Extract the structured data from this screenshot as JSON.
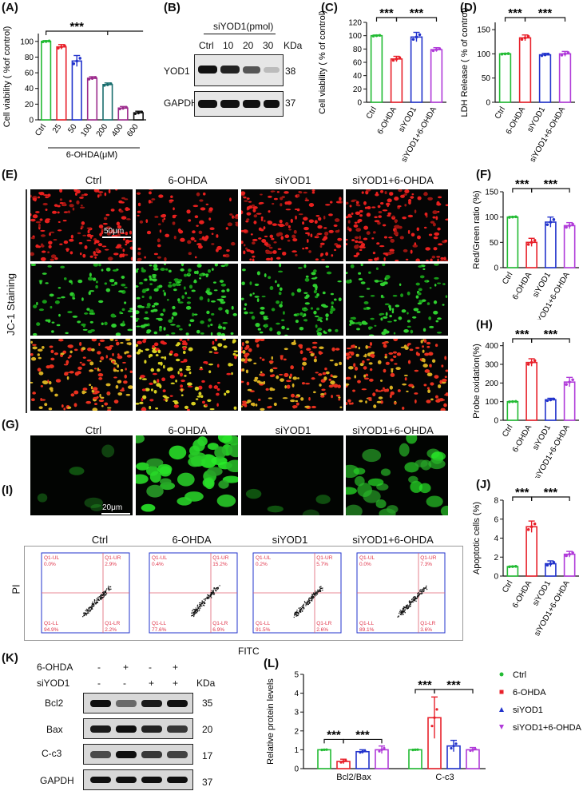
{
  "colors": {
    "green": "#22bb33",
    "red": "#e8202a",
    "blue": "#2233cc",
    "purple": "#b03ad9",
    "magenta": "#9c2a8c",
    "teal": "#1a6e6e",
    "black": "#111111"
  },
  "panels": {
    "A": "(A)",
    "B": "(B)",
    "C": "(C)",
    "D": "(D)",
    "E": "(E)",
    "F": "(F)",
    "G": "(G)",
    "H": "(H)",
    "I": "(I)",
    "J": "(J)",
    "K": "(K)",
    "L": "(L)"
  },
  "sig": "***",
  "groups": [
    "Ctrl",
    "6-OHDA",
    "siYOD1",
    "siYOD1+6-OHDA"
  ],
  "panelA": {
    "type": "bar",
    "ylabel": "Cell viability ( %of control)",
    "xlabel": "6-OHDA(μM)",
    "categories": [
      "Ctrl",
      "25",
      "50",
      "100",
      "200",
      "400",
      "600"
    ],
    "values": [
      100,
      93,
      75,
      53,
      45,
      15,
      9
    ],
    "errors": [
      1,
      3,
      7,
      2,
      2,
      2,
      2
    ],
    "ylim": [
      0,
      110
    ],
    "yticks": [
      "0",
      "20",
      "40",
      "60",
      "80",
      "100"
    ]
  },
  "panelB": {
    "title": "siYOD1(pmol)",
    "kda": "KDa",
    "lanes": [
      "Ctrl",
      "10",
      "20",
      "30"
    ],
    "rows": [
      {
        "name": "YOD1",
        "mw": "38"
      },
      {
        "name": "GAPDH",
        "mw": "37"
      }
    ]
  },
  "panelC": {
    "type": "bar",
    "ylabel": "Cell viability ( % of control)",
    "categories": [
      "Ctrl",
      "6-OHDA",
      "siYOD1",
      "siYOD1+6-OHDA"
    ],
    "values": [
      100,
      65,
      98,
      79
    ],
    "errors": [
      1,
      4,
      7,
      3
    ],
    "ylim": [
      0,
      120
    ],
    "yticks": [
      "0",
      "20",
      "40",
      "60",
      "80",
      "100",
      "120"
    ]
  },
  "panelD": {
    "type": "bar",
    "ylabel": "LDH Release ( % of control)",
    "categories": [
      "Ctrl",
      "6-OHDA",
      "siYOD1",
      "siYOD1+6-OHDA"
    ],
    "values": [
      100,
      133,
      98,
      100
    ],
    "errors": [
      1,
      6,
      3,
      5
    ],
    "ylim": [
      0,
      165
    ],
    "yticks": [
      "0",
      "50",
      "100",
      "150"
    ]
  },
  "panelE": {
    "cols": [
      "Ctrl",
      "6-OHDA",
      "siYOD1",
      "siYOD1+6-OHDA"
    ],
    "ylabel": "JC-1 Staining",
    "scale": "50μm"
  },
  "panelF": {
    "type": "bar",
    "ylabel": "Red/Green ratio (%)",
    "categories": [
      "Ctrl",
      "6-OHDA",
      "siYOD1",
      "siYOD1+6-OHDA"
    ],
    "values": [
      100,
      50,
      90,
      83
    ],
    "errors": [
      1,
      8,
      10,
      6
    ],
    "ylim": [
      0,
      150
    ],
    "yticks": [
      "0",
      "50",
      "100",
      "150"
    ]
  },
  "panelG": {
    "cols": [
      "Ctrl",
      "6-OHDA",
      "siYOD1",
      "siYOD1+6-OHDA"
    ],
    "scale": "20μm"
  },
  "panelH": {
    "type": "bar",
    "ylabel": "Probe oxidation(%)",
    "categories": [
      "Ctrl",
      "6-OHDA",
      "siYOD1",
      "siYOD1+6-OHDA"
    ],
    "values": [
      100,
      310,
      110,
      205
    ],
    "errors": [
      2,
      20,
      8,
      25
    ],
    "ylim": [
      0,
      420
    ],
    "yticks": [
      "0",
      "100",
      "200",
      "300",
      "400"
    ]
  },
  "panelI": {
    "cols": [
      "Ctrl",
      "6-OHDA",
      "siYOD1",
      "siYOD1+6-OHDA"
    ],
    "xlabel": "FITC",
    "ylabel": "PI",
    "plots": [
      {
        "ul": "Q1-UL",
        "ur": "Q1-UR",
        "ll": "Q1-LL",
        "lr": "Q1-LR",
        "ulv": "0.0%",
        "urv": "2.9%",
        "llv": "94.9%",
        "lrv": "2.2%"
      },
      {
        "ul": "Q1-UL",
        "ur": "Q1-UR",
        "ll": "Q1-LL",
        "lr": "Q1-LR",
        "ulv": "0.4%",
        "urv": "15.2%",
        "llv": "77.6%",
        "lrv": "6.9%"
      },
      {
        "ul": "Q1-UL",
        "ur": "Q1-UR",
        "ll": "Q1-LL",
        "lr": "Q1-LR",
        "ulv": "0.2%",
        "urv": "5.7%",
        "llv": "91.5%",
        "lrv": "2.6%"
      },
      {
        "ul": "Q1-UL",
        "ur": "Q1-UR",
        "ll": "Q1-LL",
        "lr": "Q1-LR",
        "ulv": "0.0%",
        "urv": "7.3%",
        "llv": "89.1%",
        "lrv": "3.6%"
      }
    ]
  },
  "panelJ": {
    "type": "bar",
    "ylabel": "Apoptotic cells (%)",
    "categories": [
      "Ctrl",
      "6-OHDA",
      "siYOD1",
      "siYOD1+6-OHDA"
    ],
    "values": [
      1,
      5.2,
      1.3,
      2.3
    ],
    "errors": [
      0.05,
      0.6,
      0.3,
      0.3
    ],
    "ylim": [
      0,
      8
    ],
    "yticks": [
      "0",
      "2",
      "4",
      "6",
      "8"
    ]
  },
  "panelK": {
    "treat1": "6-OHDA",
    "treat2": "siYOD1",
    "kda": "KDa",
    "row1": [
      "-",
      "+",
      "-",
      "+"
    ],
    "row2": [
      "-",
      "-",
      "+",
      "+"
    ],
    "rows": [
      {
        "name": "Bcl2",
        "mw": "35"
      },
      {
        "name": "Bax",
        "mw": "20"
      },
      {
        "name": "C-c3",
        "mw": "17"
      },
      {
        "name": "GAPDH",
        "mw": "37"
      }
    ]
  },
  "chart_data": {
    "type": "bar",
    "ylabel": "Relative protein levels",
    "categories": [
      "Bcl2/Bax",
      "C-c3"
    ],
    "ylim": [
      0,
      5
    ],
    "yticks": [
      "0",
      "1",
      "2",
      "3",
      "4",
      "5"
    ],
    "series": [
      {
        "name": "Ctrl",
        "values": [
          1.0,
          1.0
        ],
        "errors": [
          0.02,
          0.02
        ]
      },
      {
        "name": "6-OHDA",
        "values": [
          0.38,
          2.7
        ],
        "errors": [
          0.12,
          1.1
        ]
      },
      {
        "name": "siYOD1",
        "values": [
          0.9,
          1.2
        ],
        "errors": [
          0.1,
          0.3
        ]
      },
      {
        "name": "siYOD1+6-OHDA",
        "values": [
          1.0,
          1.0
        ],
        "errors": [
          0.2,
          0.12
        ]
      }
    ]
  }
}
